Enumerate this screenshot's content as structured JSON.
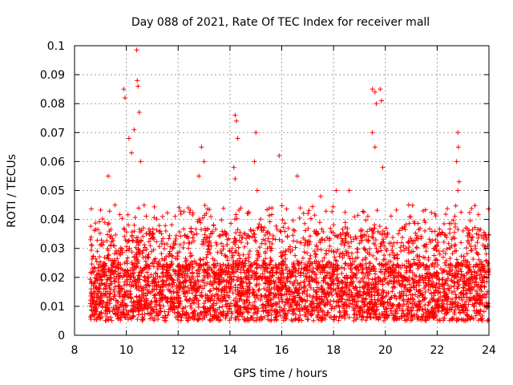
{
  "chart_data": {
    "type": "scatter",
    "title": "Day 088 of 2021, Rate Of TEC Index for receiver mall",
    "xlabel": "GPS time / hours",
    "ylabel": "ROTI / TECUs",
    "xlim": [
      8,
      24
    ],
    "ylim": [
      0,
      0.1
    ],
    "xticks": [
      8,
      10,
      12,
      14,
      16,
      18,
      20,
      22,
      24
    ],
    "yticks": [
      0,
      0.01,
      0.02,
      0.03,
      0.04,
      0.05,
      0.06,
      0.07,
      0.08,
      0.09,
      0.1
    ],
    "grid": true,
    "marker": "plus",
    "color": "#ff0000",
    "x_range_of_data": [
      8.6,
      24.0
    ],
    "dense_band": [
      0.005,
      0.025
    ],
    "series": [
      {
        "points": [
          [
            9.9,
            0.085
          ],
          [
            9.95,
            0.082
          ],
          [
            10.1,
            0.068
          ],
          [
            10.2,
            0.063
          ],
          [
            10.3,
            0.071
          ],
          [
            10.4,
            0.0985
          ],
          [
            10.42,
            0.088
          ],
          [
            10.45,
            0.086
          ],
          [
            10.5,
            0.077
          ],
          [
            10.55,
            0.06
          ],
          [
            9.3,
            0.055
          ],
          [
            11.4,
            0.041
          ],
          [
            12.9,
            0.065
          ],
          [
            13.0,
            0.06
          ],
          [
            12.8,
            0.055
          ],
          [
            14.2,
            0.076
          ],
          [
            14.25,
            0.074
          ],
          [
            14.3,
            0.068
          ],
          [
            14.15,
            0.058
          ],
          [
            14.2,
            0.054
          ],
          [
            15.0,
            0.07
          ],
          [
            14.95,
            0.06
          ],
          [
            15.05,
            0.05
          ],
          [
            15.9,
            0.062
          ],
          [
            16.6,
            0.055
          ],
          [
            17.5,
            0.048
          ],
          [
            18.1,
            0.05
          ],
          [
            18.6,
            0.05
          ],
          [
            19.5,
            0.085
          ],
          [
            19.6,
            0.084
          ],
          [
            19.65,
            0.08
          ],
          [
            19.8,
            0.085
          ],
          [
            19.85,
            0.081
          ],
          [
            19.5,
            0.07
          ],
          [
            19.6,
            0.065
          ],
          [
            19.9,
            0.058
          ],
          [
            20.9,
            0.045
          ],
          [
            22.8,
            0.07
          ],
          [
            22.82,
            0.065
          ],
          [
            22.75,
            0.06
          ],
          [
            22.85,
            0.053
          ],
          [
            22.8,
            0.05
          ],
          [
            23.9,
            0.033
          ],
          [
            23.95,
            0.031
          ]
        ]
      }
    ]
  }
}
